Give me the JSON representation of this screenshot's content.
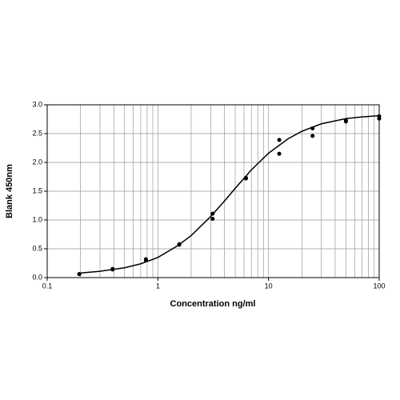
{
  "chart_data": {
    "type": "scatter",
    "x_label": "Concentration ng/ml",
    "y_label": "Blank 450nm",
    "xscale": "log",
    "xlim": [
      0.1,
      100
    ],
    "xticks": [
      0.1,
      1,
      10,
      100
    ],
    "xminor_ticks": [
      0.2,
      0.3,
      0.4,
      0.5,
      0.6,
      0.7,
      0.8,
      0.9,
      2,
      3,
      4,
      5,
      6,
      7,
      8,
      9,
      20,
      30,
      40,
      50,
      60,
      70,
      80,
      90
    ],
    "ylim": [
      0,
      3
    ],
    "yticks": [
      {
        "value": 0,
        "label": "0.0"
      },
      0.5,
      {
        "value": 1,
        "label": "1.0"
      },
      1.5,
      {
        "value": 2,
        "label": "2.0"
      },
      2.5,
      {
        "value": 3,
        "label": "3.0"
      }
    ],
    "grid": true,
    "color": "#000000",
    "points": {
      "x": [
        0.195,
        0.195,
        0.39,
        0.39,
        0.78,
        0.78,
        1.56,
        1.56,
        3.125,
        3.125,
        6.25,
        6.25,
        12.5,
        12.5,
        25,
        25,
        50,
        50,
        100,
        100
      ],
      "values": [
        0.06,
        0.06,
        0.15,
        0.14,
        0.32,
        0.3,
        0.58,
        0.57,
        1.11,
        1.02,
        1.73,
        1.72,
        2.39,
        2.15,
        2.59,
        2.46,
        2.73,
        2.71,
        2.8,
        2.76
      ]
    },
    "curve": {
      "x": [
        0.2,
        0.3,
        0.5,
        0.7,
        1,
        1.5,
        2,
        3,
        4,
        5,
        7,
        10,
        15,
        20,
        30,
        50,
        70,
        100
      ],
      "values": [
        0.08,
        0.11,
        0.17,
        0.24,
        0.35,
        0.55,
        0.73,
        1.06,
        1.33,
        1.55,
        1.87,
        2.16,
        2.41,
        2.54,
        2.67,
        2.76,
        2.79,
        2.81
      ]
    }
  }
}
